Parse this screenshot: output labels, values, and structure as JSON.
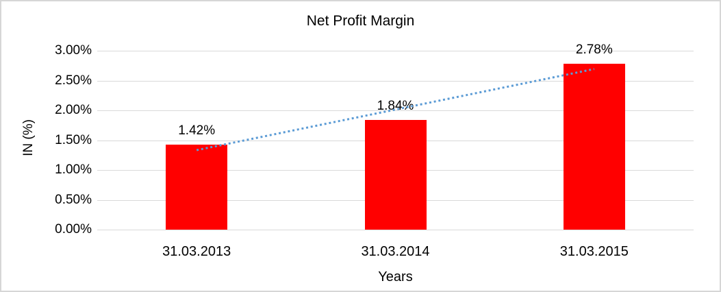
{
  "frame": {
    "border_color": "#d6d6d6",
    "background": "#ffffff"
  },
  "chart_data": {
    "type": "bar",
    "title": "Net Profit Margin",
    "xlabel": "Years",
    "ylabel": "IN (%)",
    "categories": [
      "31.03.2013",
      "31.03.2014",
      "31.03.2015"
    ],
    "series": [
      {
        "name": "Net Profit Margin",
        "values": [
          1.42,
          1.84,
          2.78
        ]
      }
    ],
    "data_labels": [
      "1.42%",
      "1.84%",
      "2.78%"
    ],
    "y_ticks": [
      {
        "label": "3.00%",
        "value": 3.0
      },
      {
        "label": "2.50%",
        "value": 2.5
      },
      {
        "label": "2.00%",
        "value": 2.0
      },
      {
        "label": "1.50%",
        "value": 1.5
      },
      {
        "label": "1.00%",
        "value": 1.0
      },
      {
        "label": "0.50%",
        "value": 0.5
      },
      {
        "label": "0.00%",
        "value": 0.0
      }
    ],
    "ylim": [
      0,
      3.0
    ],
    "grid": true,
    "legend": false,
    "bar_color": "#ff0000",
    "gridline_color": "#d9d9d9",
    "text_color": "#000000",
    "trendline": {
      "type": "linear",
      "style": "dotted",
      "color": "#5b9bd5",
      "start_value": 1.333,
      "end_value": 2.693
    }
  }
}
